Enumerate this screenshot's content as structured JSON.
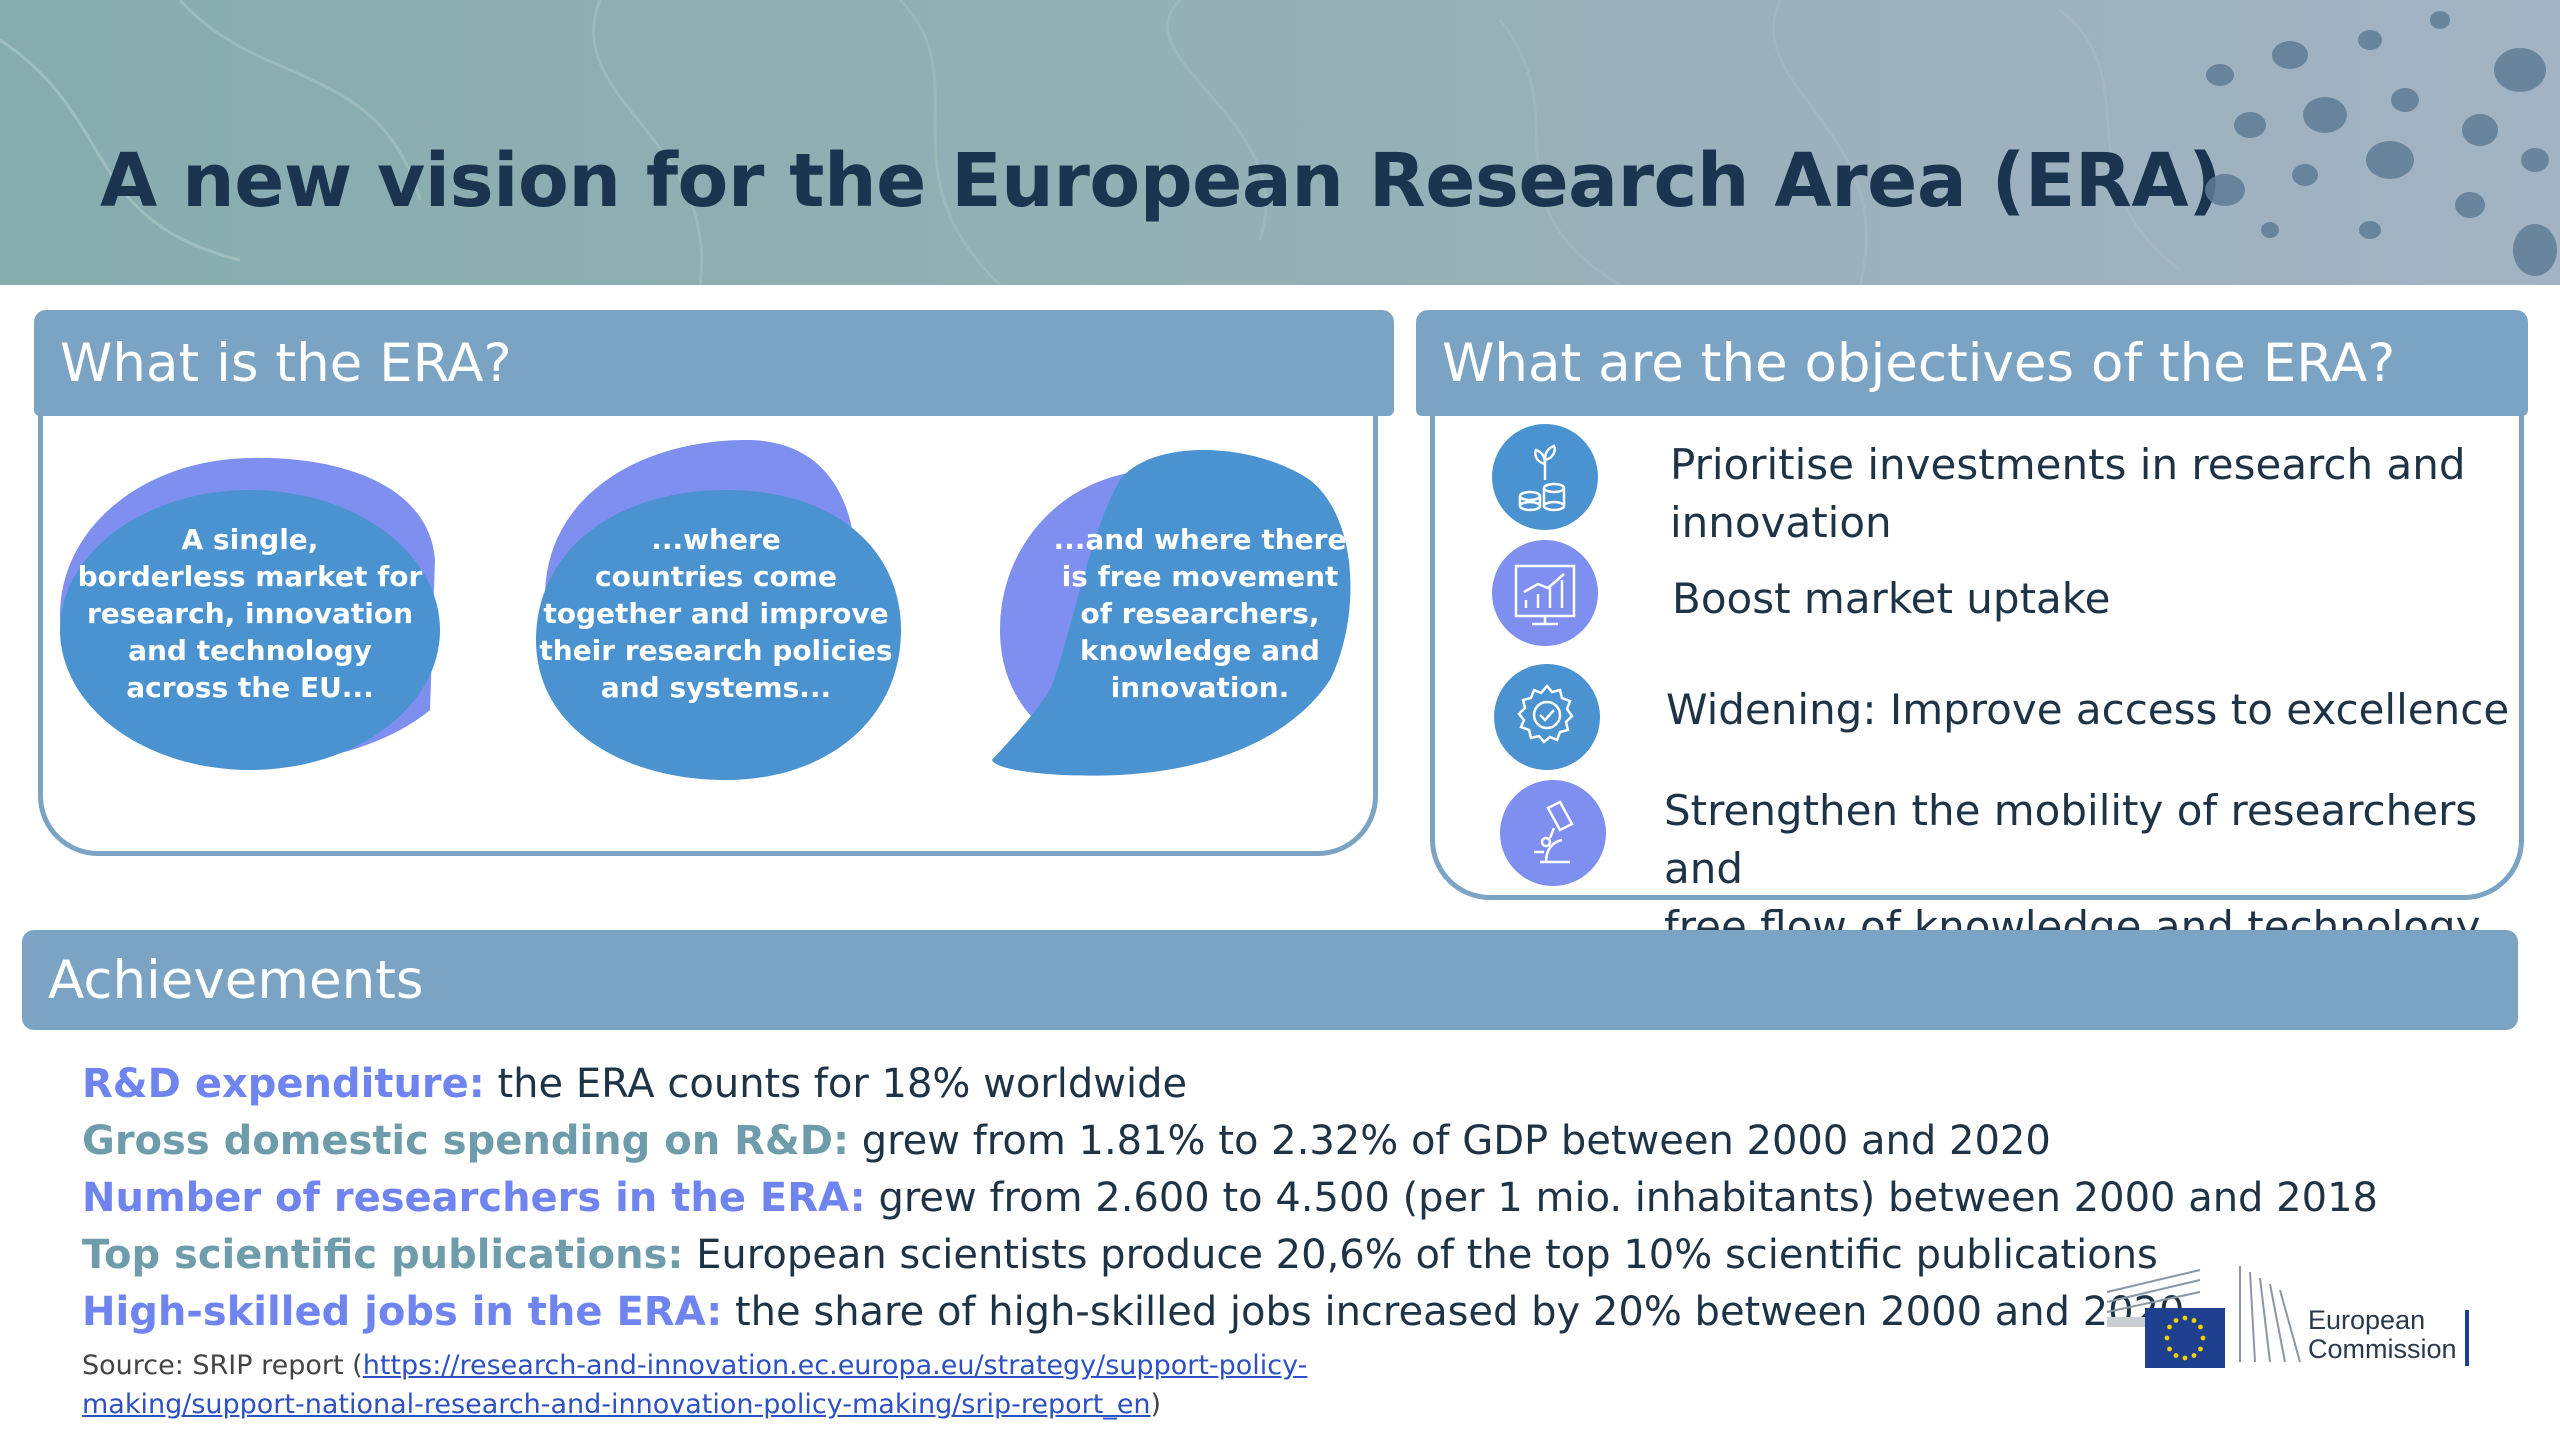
{
  "title": "A new vision for the European Research Area (ERA)",
  "what_is": {
    "heading": "What is the ERA?",
    "bubbles": [
      {
        "lines": [
          "A single,",
          "borderless market for",
          "research, innovation",
          "and technology",
          "across the EU..."
        ]
      },
      {
        "lines": [
          "...where",
          "countries come",
          "together and improve",
          "their research policies",
          "and systems..."
        ]
      },
      {
        "lines": [
          "...and where there",
          "is free movement",
          "of researchers,",
          "knowledge and",
          "innovation."
        ]
      }
    ]
  },
  "objectives": {
    "heading": "What are the objectives of the ERA?",
    "items": [
      {
        "icon": "investment-icon",
        "lines": [
          "Prioritise investments in research and",
          "innovation"
        ]
      },
      {
        "icon": "market-chart-icon",
        "lines": [
          "Boost market uptake"
        ]
      },
      {
        "icon": "excellence-badge-icon",
        "lines": [
          "Widening: Improve access to excellence"
        ]
      },
      {
        "icon": "microscope-icon",
        "lines": [
          "Strengthen the mobility of researchers and",
          "free flow of knowledge and technology"
        ]
      }
    ]
  },
  "achievements": {
    "heading": "Achievements",
    "items": [
      {
        "key": "R&D expenditure:",
        "text": " the ERA counts for 18% worldwide",
        "key_color": "#6f84ee"
      },
      {
        "key": "Gross domestic spending on R&D:",
        "text": " grew from 1.81% to 2.32% of GDP between 2000 and 2020",
        "key_color": "#6e9cab"
      },
      {
        "key": "Number of researchers in the ERA:",
        "text": " grew from 2.600 to 4.500 (per 1 mio. inhabitants) between 2000 and 2018",
        "key_color": "#6f84ee"
      },
      {
        "key": "Top scientific publications:",
        "text": " European scientists produce 20,6% of the top 10% scientific publications",
        "key_color": "#6e9cab"
      },
      {
        "key": "High-skilled jobs in the ERA:",
        "text": " the share of high-skilled jobs increased by 20% between 2000 and 2020",
        "key_color": "#6f84ee"
      }
    ],
    "source_prefix": "Source: SRIP report (",
    "source_link_line1": "https://research-and-innovation.ec.europa.eu/strategy/support-policy-",
    "source_link_line2": "making/support-national-research-and-innovation-policy-making/srip-report_en",
    "source_suffix": ")"
  },
  "logo": {
    "line1": "European",
    "line2": "Commission"
  },
  "colors": {
    "panel": "#7ba3c3",
    "blue_key": "#6f84ee",
    "teal_key": "#6e9cab",
    "bubble_front": "#4a93d0",
    "bubble_back": "#7e8ff0"
  }
}
